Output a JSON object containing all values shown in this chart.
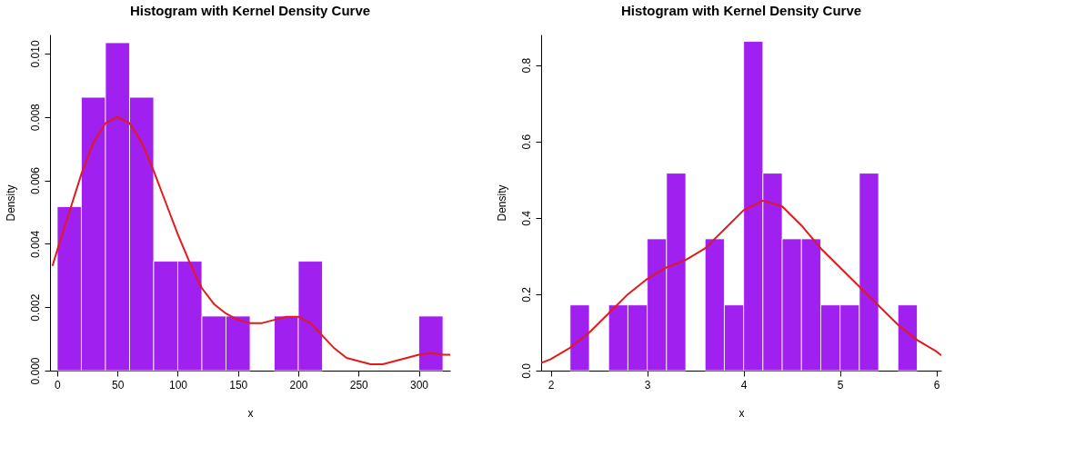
{
  "chart_data": [
    {
      "type": "histogram",
      "title": "Histogram with Kernel Density Curve",
      "xlabel": "x",
      "ylabel": "Density",
      "color": "#a020f0",
      "grid": false,
      "bins": [
        0,
        20,
        40,
        60,
        80,
        100,
        120,
        140,
        160,
        180,
        200,
        220,
        240,
        260,
        280,
        300,
        320
      ],
      "values": [
        0.00517,
        0.00862,
        0.01034,
        0.00862,
        0.00345,
        0.00345,
        0.00172,
        0.00172,
        0,
        0.00172,
        0.00345,
        0,
        0,
        0,
        0,
        0.00172
      ],
      "xlim": [
        -6,
        326
      ],
      "xticks": [
        0,
        50,
        100,
        150,
        200,
        250,
        300
      ],
      "ylim": [
        0,
        0.0106
      ],
      "yticks": [
        {
          "value": 0,
          "label": "0.000"
        },
        {
          "value": 0.002,
          "label": "0.002"
        },
        {
          "value": 0.004,
          "label": "0.004"
        },
        {
          "value": 0.006,
          "label": "0.006"
        },
        {
          "value": 0.008,
          "label": "0.008"
        },
        {
          "value": 0.01,
          "label": "0.010"
        }
      ],
      "series": [
        {
          "type": "line",
          "color": "#e31a1c",
          "x": [
            -4,
            0,
            10,
            20,
            30,
            40,
            50,
            60,
            70,
            80,
            90,
            100,
            110,
            120,
            130,
            140,
            150,
            160,
            170,
            180,
            190,
            200,
            210,
            220,
            230,
            240,
            250,
            260,
            270,
            280,
            290,
            300,
            310,
            320,
            326
          ],
          "values": [
            0.0033,
            0.0038,
            0.005,
            0.0062,
            0.0072,
            0.0078,
            0.008,
            0.0078,
            0.0072,
            0.0063,
            0.0053,
            0.0043,
            0.0034,
            0.0026,
            0.0021,
            0.0018,
            0.0016,
            0.0015,
            0.0015,
            0.0016,
            0.0017,
            0.0017,
            0.0015,
            0.0011,
            0.0007,
            0.0004,
            0.0003,
            0.0002,
            0.0002,
            0.0003,
            0.0004,
            0.0005,
            0.00055,
            0.0005,
            0.0005
          ]
        }
      ]
    },
    {
      "type": "histogram",
      "title": "Histogram with Kernel Density Curve",
      "xlabel": "x",
      "ylabel": "Density",
      "color": "#a020f0",
      "grid": false,
      "bins": [
        2.2,
        2.4,
        2.6,
        2.8,
        3.0,
        3.2,
        3.4,
        3.6,
        3.8,
        4.0,
        4.2,
        4.4,
        4.6,
        4.8,
        5.0,
        5.2,
        5.4,
        5.6,
        5.8
      ],
      "values": [
        0.172,
        0,
        0.172,
        0.172,
        0.345,
        0.517,
        0,
        0.345,
        0.172,
        0.862,
        0.517,
        0.345,
        0.345,
        0.172,
        0.172,
        0.517,
        0,
        0.172
      ],
      "xlim": [
        1.9,
        6.05
      ],
      "xticks": [
        2,
        3,
        4,
        5,
        6
      ],
      "ylim": [
        0,
        0.88
      ],
      "yticks": [
        {
          "value": 0,
          "label": "0.0"
        },
        {
          "value": 0.2,
          "label": "0.2"
        },
        {
          "value": 0.4,
          "label": "0.4"
        },
        {
          "value": 0.6,
          "label": "0.6"
        },
        {
          "value": 0.8,
          "label": "0.8"
        }
      ],
      "series": [
        {
          "type": "line",
          "color": "#e31a1c",
          "x": [
            1.9,
            2.0,
            2.2,
            2.4,
            2.6,
            2.8,
            3.0,
            3.2,
            3.4,
            3.6,
            3.8,
            4.0,
            4.2,
            4.4,
            4.6,
            4.8,
            5.0,
            5.2,
            5.4,
            5.6,
            5.8,
            6.0,
            6.05
          ],
          "values": [
            0.02,
            0.03,
            0.06,
            0.1,
            0.15,
            0.2,
            0.24,
            0.27,
            0.29,
            0.32,
            0.37,
            0.42,
            0.445,
            0.43,
            0.38,
            0.32,
            0.27,
            0.22,
            0.17,
            0.12,
            0.08,
            0.05,
            0.04
          ]
        }
      ]
    }
  ]
}
